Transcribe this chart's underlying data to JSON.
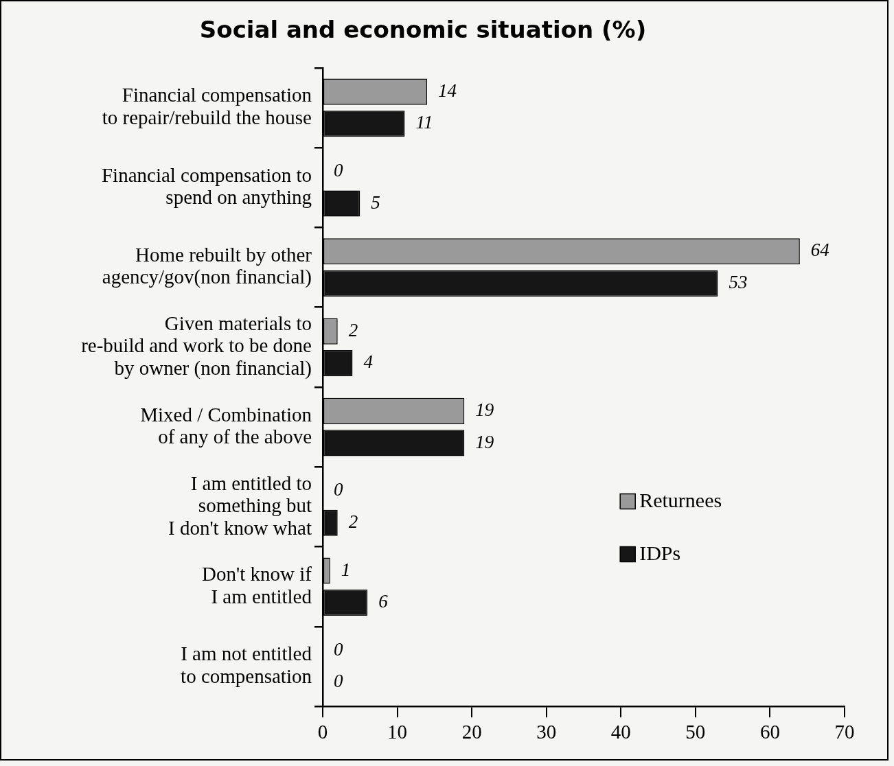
{
  "chart_data": {
    "type": "bar",
    "orientation": "horizontal",
    "title": "Social and economic situation (%)",
    "categories": [
      "Financial compensation\nto repair/rebuild the house",
      "Financial compensation to\nspend on anything",
      "Home rebuilt by other\nagency/gov(non financial)",
      "Given materials to\nre-build and work to be done\nby owner (non financial)",
      "Mixed / Combination\nof any of the above",
      "I am entitled to\nsomething but\nI don't know what",
      "Don't know if\nI am entitled",
      "I am not entitled\nto compensation"
    ],
    "series": [
      {
        "name": "Returnees",
        "color": "#9a9a9a",
        "values": [
          14,
          0,
          64,
          2,
          19,
          0,
          1,
          0
        ]
      },
      {
        "name": "IDPs",
        "color": "#161616",
        "values": [
          11,
          5,
          53,
          4,
          19,
          2,
          6,
          0
        ]
      }
    ],
    "xlim": [
      0,
      70
    ],
    "xticks": [
      0,
      10,
      20,
      30,
      40,
      50,
      60,
      70
    ],
    "data_labels": true,
    "legend": "right"
  }
}
